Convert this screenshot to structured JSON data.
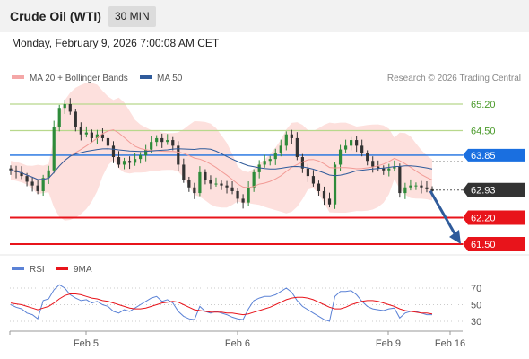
{
  "header": {
    "instrument": "Crude Oil (WTI)",
    "interval": "30 MIN"
  },
  "datetime": "Monday, February 9, 2026 7:00:08 AM CET",
  "legend": {
    "item1": "MA 20 + Bollinger Bands",
    "item2": "MA 50",
    "credit": "Research © 2026 Trading Central"
  },
  "colors": {
    "up": "#2e8b3a",
    "down": "#333333",
    "bollinger": "#f4a7a7",
    "ma50": "#2f5b9b",
    "resistance": "#b8d88c",
    "support": "#e8141b",
    "pivot": "#1a6fe0",
    "rsi": "#5b82d6",
    "rsi_ma": "#e8141b"
  },
  "chart_data": [
    {
      "type": "candlestick",
      "ylim": [
        61.0,
        66.0
      ],
      "levels": [
        {
          "value": 65.2,
          "label": "65.20",
          "kind": "resistance"
        },
        {
          "value": 64.5,
          "label": "64.50",
          "kind": "resistance"
        },
        {
          "value": 63.85,
          "label": "63.85",
          "kind": "pivot"
        },
        {
          "value": 62.93,
          "label": "62.93",
          "kind": "last"
        },
        {
          "value": 62.2,
          "label": "62.20",
          "kind": "support"
        },
        {
          "value": 61.5,
          "label": "61.50",
          "kind": "support"
        }
      ],
      "forecast": {
        "from": 62.93,
        "to": 61.5
      },
      "close": [
        63.45,
        63.4,
        63.3,
        63.15,
        63.05,
        62.9,
        63.25,
        63.45,
        64.6,
        65.1,
        65.2,
        65.0,
        64.6,
        64.4,
        64.45,
        64.3,
        64.4,
        64.3,
        64.1,
        63.8,
        63.6,
        63.7,
        63.65,
        63.75,
        63.85,
        64.0,
        64.2,
        64.3,
        64.2,
        64.25,
        64.1,
        63.6,
        63.2,
        63.0,
        62.85,
        63.4,
        63.2,
        63.1,
        63.1,
        63.05,
        63.0,
        62.9,
        62.7,
        62.6,
        63.0,
        63.4,
        63.6,
        63.7,
        63.75,
        63.9,
        64.1,
        64.4,
        64.3,
        63.8,
        63.5,
        63.3,
        63.1,
        62.9,
        62.7,
        62.55,
        63.6,
        64.0,
        64.1,
        64.25,
        64.1,
        63.9,
        63.7,
        63.55,
        63.5,
        63.45,
        63.5,
        63.55,
        62.85,
        63.0,
        63.05,
        63.05,
        63.0,
        62.95,
        62.9
      ],
      "x_ticks": [
        "Feb 5",
        "Feb 6",
        "Feb 9",
        "Feb 16"
      ],
      "legend": [
        "MA 20 + Bollinger Bands",
        "MA 50"
      ]
    },
    {
      "type": "line",
      "ylim": [
        20,
        80
      ],
      "y_ticks": [
        70,
        50,
        30
      ],
      "legend": [
        "RSI",
        "9MA"
      ],
      "rsi": [
        50,
        47,
        45,
        40,
        38,
        33,
        55,
        57,
        68,
        74,
        70,
        62,
        58,
        55,
        56,
        52,
        54,
        50,
        48,
        42,
        40,
        44,
        42,
        46,
        50,
        54,
        58,
        60,
        54,
        56,
        52,
        42,
        36,
        33,
        32,
        48,
        42,
        40,
        42,
        40,
        38,
        35,
        33,
        32,
        45,
        55,
        58,
        60,
        60,
        62,
        66,
        70,
        65,
        55,
        48,
        44,
        40,
        36,
        32,
        30,
        60,
        66,
        66,
        67,
        62,
        54,
        48,
        45,
        44,
        43,
        45,
        46,
        34,
        40,
        42,
        42,
        40,
        38,
        38
      ],
      "rsi_ma": [
        52,
        51,
        50,
        48,
        46,
        44,
        46,
        48,
        52,
        57,
        61,
        63,
        63,
        62,
        60,
        58,
        57,
        55,
        54,
        52,
        50,
        48,
        46,
        45,
        45,
        46,
        48,
        50,
        52,
        53,
        54,
        53,
        50,
        47,
        44,
        43,
        42,
        41,
        41,
        41,
        40,
        40,
        39,
        38,
        39,
        41,
        43,
        45,
        47,
        50,
        53,
        56,
        58,
        59,
        59,
        58,
        56,
        53,
        50,
        47,
        45,
        45,
        47,
        50,
        52,
        54,
        55,
        55,
        54,
        52,
        50,
        48,
        45,
        43,
        42,
        41,
        40,
        40,
        39
      ],
      "x_ticks": [
        "Feb 5",
        "Feb 6",
        "Feb 9",
        "Feb 16"
      ]
    }
  ]
}
